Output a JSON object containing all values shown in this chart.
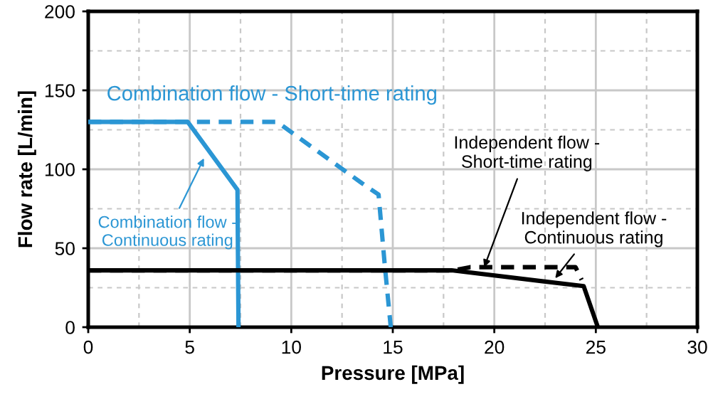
{
  "chart_data": {
    "type": "line",
    "xlabel": "Pressure [MPa]",
    "ylabel": "Flow rate [L/min]",
    "xlim": [
      0,
      30
    ],
    "ylim": [
      0,
      200
    ],
    "xticks": [
      0,
      5,
      10,
      15,
      20,
      25,
      30
    ],
    "yticks": [
      0,
      50,
      100,
      150,
      200
    ],
    "grid": true,
    "series": [
      {
        "color": "#2b96d4",
        "line_style": "solid",
        "x": [
          0,
          4.9,
          7.35,
          7.4
        ],
        "values": [
          130,
          130,
          87,
          0
        ]
      },
      {
        "color": "#2b96d4",
        "line_style": "dashed",
        "x": [
          0,
          9.3,
          13.5,
          14.3,
          14.6,
          14.9
        ],
        "values": [
          130,
          130,
          91,
          84,
          40,
          0
        ]
      },
      {
        "color": "#000000",
        "line_style": "solid",
        "x": [
          0,
          17.9,
          24.4,
          25.1
        ],
        "values": [
          36,
          36,
          26,
          0
        ]
      },
      {
        "color": "#000000",
        "line_style": "dashed",
        "x": [
          0,
          18,
          18.8,
          24,
          24.3
        ],
        "values": [
          36,
          36,
          38,
          38,
          30
        ]
      }
    ],
    "annotations": [
      "Combination flow - Short-time rating",
      {
        "text": "Combination flow -\nContinuous rating",
        "x": 5.7,
        "y": 107
      },
      {
        "text": "Independent flow -\nShort-time rating",
        "x": 19.5,
        "y": 38
      },
      {
        "text": "Independent flow -\nContinuous rating",
        "x": 23.0,
        "y": 31
      }
    ]
  }
}
